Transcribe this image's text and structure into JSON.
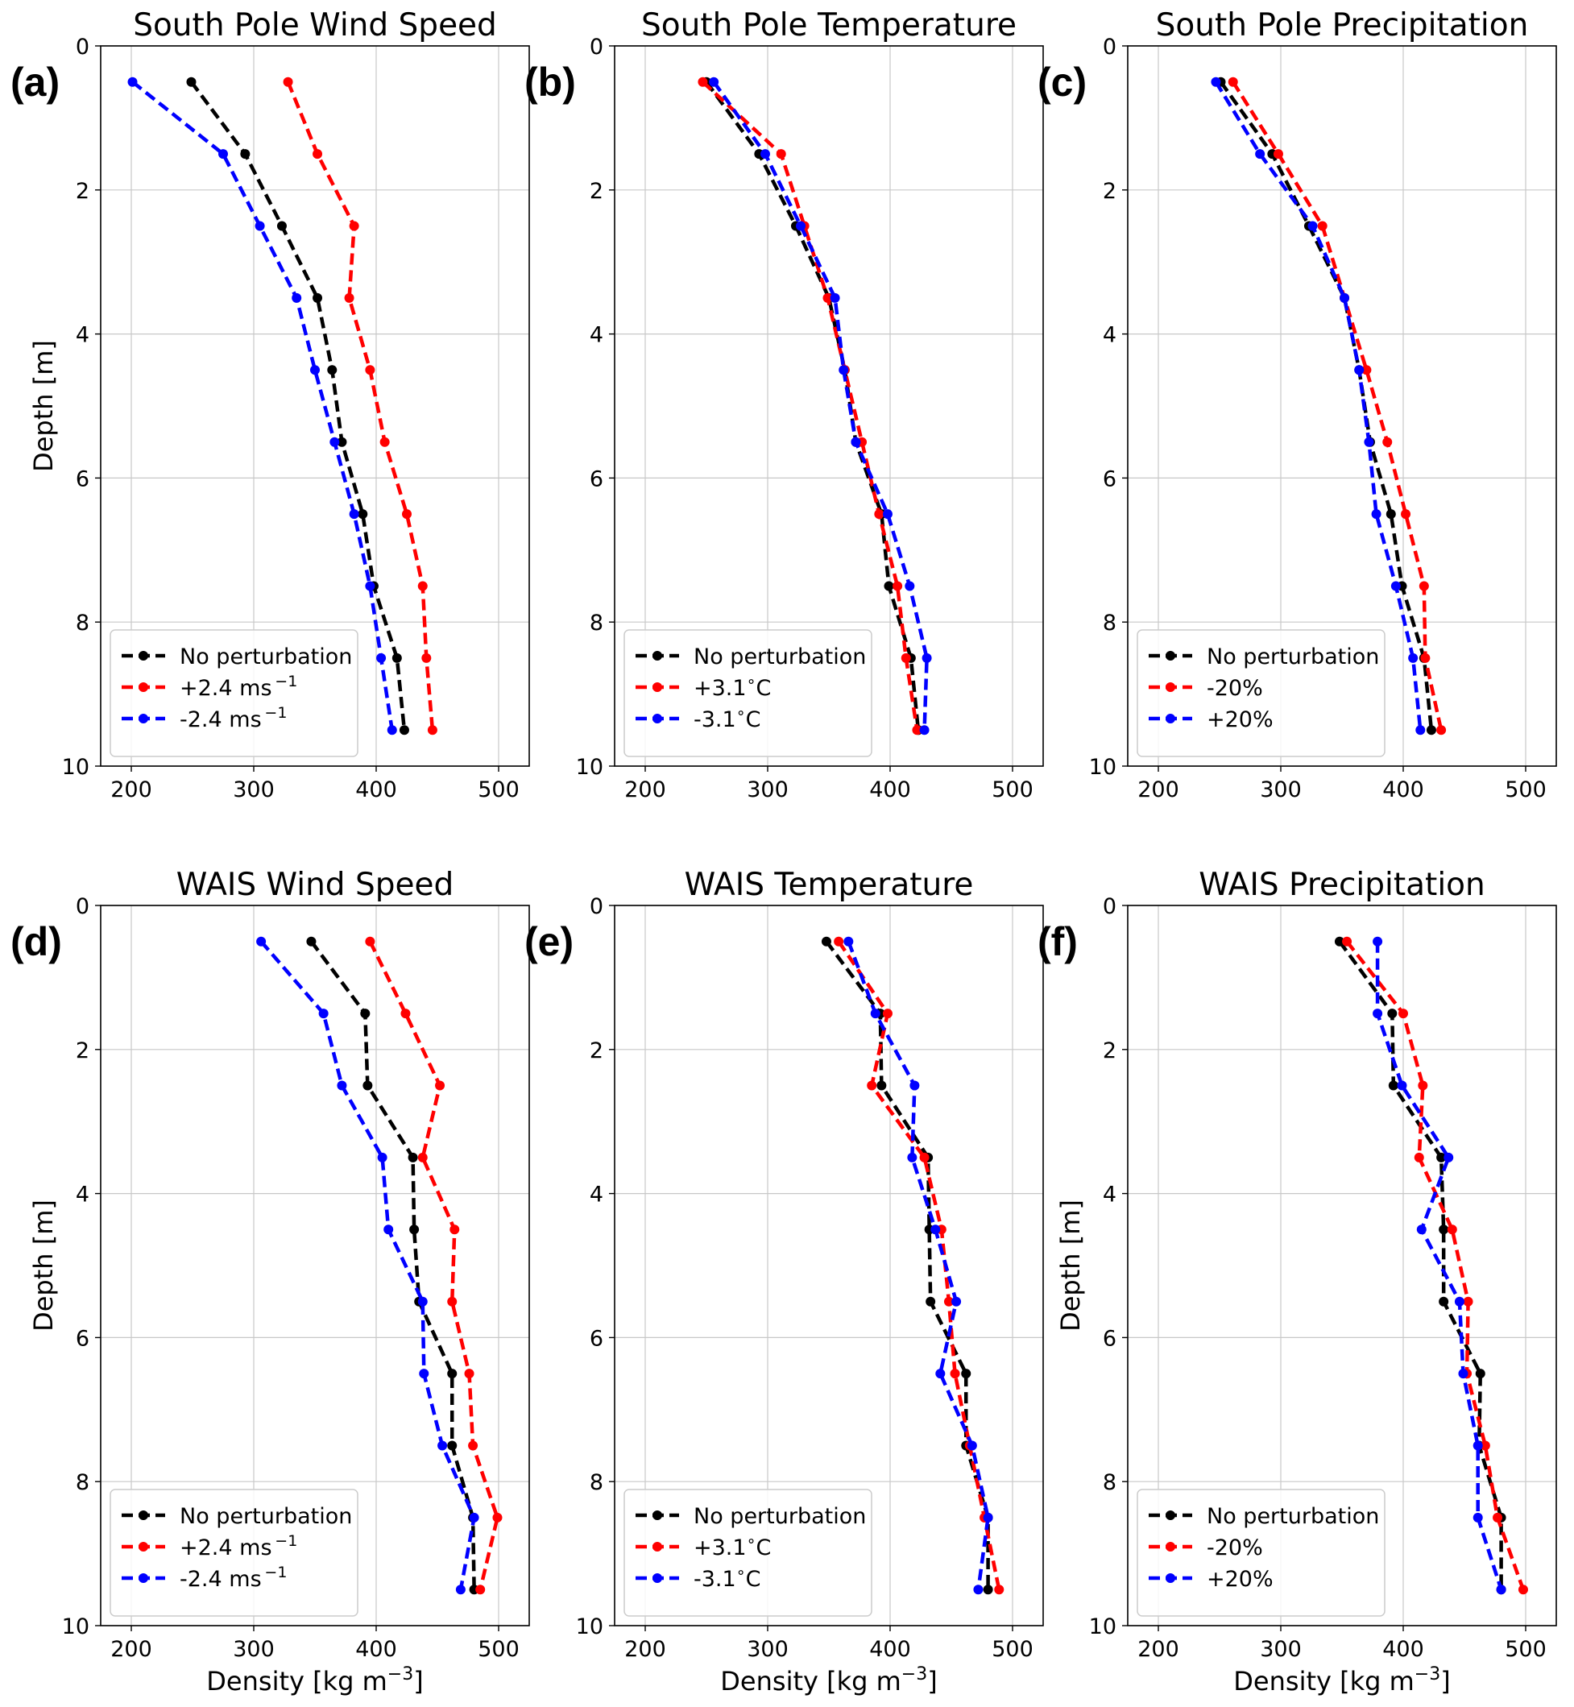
{
  "chart_data": [
    {
      "type": "line",
      "panel_label": "(a)",
      "title": "South Pole Wind Speed",
      "xlabel": "",
      "ylabel": "Depth [m]",
      "xlim": [
        175,
        525
      ],
      "ylim": [
        10,
        0
      ],
      "xticks": [
        "200",
        "300",
        "400",
        "500"
      ],
      "yticks": [
        "0",
        "2",
        "4",
        "6",
        "8",
        "10"
      ],
      "depths": [
        0.5,
        1.5,
        2.5,
        3.5,
        4.5,
        5.5,
        6.5,
        7.5,
        8.5,
        9.5
      ],
      "legend": [
        "No perturbation",
        "+2.4 ms",
        "-2.4 ms"
      ],
      "legend_sup": [
        "",
        "−1",
        "−1"
      ],
      "series": [
        {
          "name": "No perturbation",
          "color": "#000000",
          "values": [
            249,
            293,
            323,
            352,
            364,
            372,
            389,
            398,
            417,
            423
          ]
        },
        {
          "name": "+2.4 ms^-1",
          "color": "#ff0000",
          "values": [
            328,
            352,
            382,
            378,
            395,
            407,
            425,
            438,
            441,
            446
          ]
        },
        {
          "name": "-2.4 ms^-1",
          "color": "#0000ff",
          "values": [
            201,
            275,
            305,
            335,
            350,
            366,
            382,
            395,
            404,
            413
          ]
        }
      ]
    },
    {
      "type": "line",
      "panel_label": "(b)",
      "title": "South Pole Temperature",
      "xlabel": "",
      "ylabel": "",
      "xlim": [
        175,
        525
      ],
      "ylim": [
        10,
        0
      ],
      "xticks": [
        "200",
        "300",
        "400",
        "500"
      ],
      "yticks": [
        "0",
        "2",
        "4",
        "6",
        "8",
        "10"
      ],
      "depths": [
        0.5,
        1.5,
        2.5,
        3.5,
        4.5,
        5.5,
        6.5,
        7.5,
        8.5,
        9.5
      ],
      "legend": [
        "No perturbation",
        "+3.1",
        "-3.1"
      ],
      "legend_sup": [
        "",
        "∘",
        "∘"
      ],
      "legend_suffix": [
        "",
        "C",
        "C"
      ],
      "series": [
        {
          "name": "No perturbation",
          "color": "#000000",
          "values": [
            250,
            293,
            323,
            350,
            363,
            372,
            393,
            399,
            417,
            423
          ]
        },
        {
          "name": "+3.1 °C",
          "color": "#ff0000",
          "values": [
            247,
            311,
            330,
            349,
            363,
            377,
            391,
            406,
            413,
            422
          ]
        },
        {
          "name": "-3.1 °C",
          "color": "#0000ff",
          "values": [
            256,
            298,
            327,
            355,
            362,
            372,
            398,
            416,
            430,
            428
          ]
        }
      ]
    },
    {
      "type": "line",
      "panel_label": "(c)",
      "title": "South Pole Precipitation",
      "xlabel": "",
      "ylabel": "",
      "xlim": [
        175,
        525
      ],
      "ylim": [
        10,
        0
      ],
      "xticks": [
        "200",
        "300",
        "400",
        "500"
      ],
      "yticks": [
        "0",
        "2",
        "4",
        "6",
        "8",
        "10"
      ],
      "depths": [
        0.5,
        1.5,
        2.5,
        3.5,
        4.5,
        5.5,
        6.5,
        7.5,
        8.5,
        9.5
      ],
      "legend": [
        "No perturbation",
        "-20%",
        "+20%"
      ],
      "legend_sup": [
        "",
        "",
        ""
      ],
      "series": [
        {
          "name": "No perturbation",
          "color": "#000000",
          "values": [
            251,
            293,
            323,
            352,
            364,
            373,
            390,
            399,
            417,
            423
          ]
        },
        {
          "name": "-20%",
          "color": "#ff0000",
          "values": [
            261,
            298,
            334,
            352,
            370,
            387,
            402,
            417,
            418,
            431
          ]
        },
        {
          "name": "+20%",
          "color": "#0000ff",
          "values": [
            247,
            283,
            326,
            352,
            364,
            372,
            378,
            394,
            408,
            414
          ]
        }
      ]
    },
    {
      "type": "line",
      "panel_label": "(d)",
      "title": "WAIS Wind Speed",
      "xlabel": "Density [kg m",
      "xlabel_sup": "−3",
      "xlabel_suffix": "]",
      "ylabel": "Depth [m]",
      "xlim": [
        175,
        525
      ],
      "ylim": [
        10,
        0
      ],
      "xticks": [
        "200",
        "300",
        "400",
        "500"
      ],
      "yticks": [
        "0",
        "2",
        "4",
        "6",
        "8",
        "10"
      ],
      "depths": [
        0.5,
        1.5,
        2.5,
        3.5,
        4.5,
        5.5,
        6.5,
        7.5,
        8.5,
        9.5
      ],
      "legend": [
        "No perturbation",
        "+2.4 ms",
        "-2.4 ms"
      ],
      "legend_sup": [
        "",
        "−1",
        "−1"
      ],
      "series": [
        {
          "name": "No perturbation",
          "color": "#000000",
          "values": [
            347,
            391,
            393,
            430,
            431,
            435,
            462,
            462,
            479,
            480
          ]
        },
        {
          "name": "+2.4 ms^-1",
          "color": "#ff0000",
          "values": [
            395,
            424,
            452,
            438,
            464,
            462,
            476,
            479,
            499,
            485
          ]
        },
        {
          "name": "-2.4 ms^-1",
          "color": "#0000ff",
          "values": [
            306,
            357,
            372,
            405,
            410,
            438,
            439,
            454,
            480,
            469
          ]
        }
      ]
    },
    {
      "type": "line",
      "panel_label": "(e)",
      "title": "WAIS Temperature",
      "xlabel": "Density [kg m",
      "xlabel_sup": "−3",
      "xlabel_suffix": "]",
      "ylabel": "",
      "xlim": [
        175,
        525
      ],
      "ylim": [
        10,
        0
      ],
      "xticks": [
        "200",
        "300",
        "400",
        "500"
      ],
      "yticks": [
        "0",
        "2",
        "4",
        "6",
        "8",
        "10"
      ],
      "depths": [
        0.5,
        1.5,
        2.5,
        3.5,
        4.5,
        5.5,
        6.5,
        7.5,
        8.5,
        9.5
      ],
      "legend": [
        "No perturbation",
        "+3.1",
        "-3.1"
      ],
      "legend_sup": [
        "",
        "∘",
        "∘"
      ],
      "legend_suffix": [
        "",
        "C",
        "C"
      ],
      "series": [
        {
          "name": "No perturbation",
          "color": "#000000",
          "values": [
            348,
            392,
            393,
            431,
            432,
            433,
            462,
            462,
            480,
            480
          ]
        },
        {
          "name": "+3.1 °C",
          "color": "#ff0000",
          "values": [
            358,
            398,
            385,
            428,
            442,
            448,
            453,
            465,
            477,
            489
          ]
        },
        {
          "name": "-3.1 °C",
          "color": "#0000ff",
          "values": [
            366,
            388,
            420,
            418,
            437,
            454,
            441,
            467,
            480,
            472
          ]
        }
      ]
    },
    {
      "type": "line",
      "panel_label": "(f)",
      "title": "WAIS Precipitation",
      "xlabel": "Density [kg m",
      "xlabel_sup": "−3",
      "xlabel_suffix": "]",
      "ylabel": "Depth [m]",
      "xlim": [
        175,
        525
      ],
      "ylim": [
        10,
        0
      ],
      "xticks": [
        "200",
        "300",
        "400",
        "500"
      ],
      "yticks": [
        "0",
        "2",
        "4",
        "6",
        "8",
        "10"
      ],
      "depths": [
        0.5,
        1.5,
        2.5,
        3.5,
        4.5,
        5.5,
        6.5,
        7.5,
        8.5,
        9.5
      ],
      "legend": [
        "No perturbation",
        "-20%",
        "+20%"
      ],
      "legend_sup": [
        "",
        "",
        ""
      ],
      "series": [
        {
          "name": "No perturbation",
          "color": "#000000",
          "values": [
            348,
            391,
            392,
            431,
            433,
            433,
            463,
            462,
            480,
            480
          ]
        },
        {
          "name": "-20%",
          "color": "#ff0000",
          "values": [
            354,
            400,
            416,
            413,
            440,
            453,
            452,
            467,
            477,
            498
          ]
        },
        {
          "name": "+20%",
          "color": "#0000ff",
          "values": [
            379,
            379,
            399,
            437,
            415,
            446,
            449,
            461,
            461,
            480
          ]
        }
      ]
    }
  ]
}
